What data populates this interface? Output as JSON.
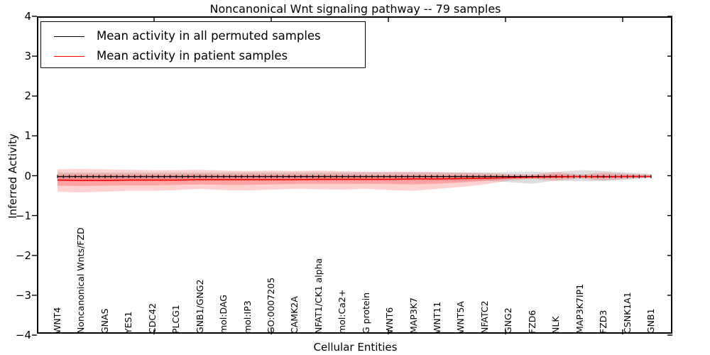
{
  "title": "Noncanonical Wnt signaling pathway -- 79 samples",
  "axes": {
    "ylabel": "Inferred Activity",
    "xlabel": "Cellular Entities",
    "yticks": [
      "4",
      "3",
      "2",
      "1",
      "0",
      "−1",
      "−2",
      "−3",
      "−4"
    ],
    "ytick_values": [
      4,
      3,
      2,
      1,
      0,
      -1,
      -2,
      -3,
      -4
    ]
  },
  "legend": {
    "items": [
      {
        "label": "Mean activity in all permuted samples",
        "color": "#000000"
      },
      {
        "label": "Mean activity in patient samples",
        "color": "#ff0000"
      }
    ]
  },
  "chart_data": {
    "type": "line",
    "title": "Noncanonical Wnt signaling pathway -- 79 samples",
    "xlabel": "Cellular Entities",
    "ylabel": "Inferred Activity",
    "ylim": [
      -4,
      4
    ],
    "grid": false,
    "legend_position": "upper left",
    "categories": [
      "WNT4",
      "Noncanonical Wnts/FZD",
      "GNAS",
      "YES1",
      "CDC42",
      "PLCG1",
      "GNB1/GNG2",
      "mol:DAG",
      "mol:IP3",
      "GO:0007205",
      "CAMK2A",
      "NFAT1/CK1 alpha",
      "mol:Ca2+",
      "G protein",
      "WNT6",
      "MAP3K7",
      "WNT11",
      "WNT5A",
      "NFATC2",
      "GNG2",
      "FZD6",
      "NLK",
      "MAP3K7IP1",
      "FZD3",
      "CSNK1A1",
      "GNB1"
    ],
    "series": [
      {
        "name": "Mean activity in all permuted samples",
        "color": "#000000",
        "values": [
          -0.02,
          -0.02,
          -0.02,
          -0.02,
          -0.02,
          -0.02,
          -0.02,
          -0.02,
          -0.02,
          -0.02,
          -0.02,
          -0.02,
          -0.02,
          -0.02,
          -0.02,
          -0.02,
          -0.02,
          -0.02,
          -0.02,
          -0.02,
          -0.02,
          -0.02,
          -0.02,
          -0.02,
          -0.02,
          -0.02
        ]
      },
      {
        "name": "Mean activity in patient samples",
        "color": "#ff0000",
        "values": [
          -0.11,
          -0.12,
          -0.12,
          -0.11,
          -0.11,
          -0.11,
          -0.1,
          -0.1,
          -0.1,
          -0.1,
          -0.1,
          -0.09,
          -0.09,
          -0.09,
          -0.09,
          -0.08,
          -0.08,
          -0.07,
          -0.06,
          -0.05,
          -0.04,
          -0.03,
          -0.02,
          -0.03,
          -0.02,
          -0.02
        ]
      }
    ],
    "bands": [
      {
        "name": "permuted-range",
        "color": "#888888",
        "opacity": 0.28,
        "upper": [
          0.08,
          0.08,
          0.08,
          0.08,
          0.08,
          0.08,
          0.08,
          0.08,
          0.08,
          0.08,
          0.08,
          0.08,
          0.08,
          0.08,
          0.08,
          0.08,
          0.08,
          0.08,
          0.08,
          0.09,
          0.1,
          0.09,
          0.14,
          0.12,
          0.08,
          0.05
        ],
        "lower": [
          -0.12,
          -0.12,
          -0.12,
          -0.12,
          -0.12,
          -0.12,
          -0.12,
          -0.12,
          -0.12,
          -0.12,
          -0.12,
          -0.12,
          -0.12,
          -0.12,
          -0.12,
          -0.12,
          -0.12,
          -0.12,
          -0.12,
          -0.16,
          -0.2,
          -0.12,
          -0.14,
          -0.13,
          -0.1,
          -0.05
        ]
      },
      {
        "name": "patient-range-outer",
        "color": "#ff0000",
        "opacity": 0.18,
        "upper": [
          0.16,
          0.17,
          0.16,
          0.15,
          0.14,
          0.14,
          0.15,
          0.13,
          0.12,
          0.13,
          0.12,
          0.13,
          0.11,
          0.1,
          0.1,
          0.1,
          0.09,
          0.08,
          0.07,
          0.04,
          0.03,
          0.09,
          0.03,
          0.08,
          0.05,
          0.02
        ],
        "lower": [
          -0.4,
          -0.42,
          -0.4,
          -0.38,
          -0.38,
          -0.36,
          -0.33,
          -0.36,
          -0.37,
          -0.35,
          -0.33,
          -0.34,
          -0.35,
          -0.33,
          -0.36,
          -0.38,
          -0.33,
          -0.28,
          -0.22,
          -0.12,
          -0.08,
          -0.13,
          -0.07,
          -0.12,
          -0.08,
          -0.04
        ]
      },
      {
        "name": "patient-range-inner",
        "color": "#ff0000",
        "opacity": 0.22,
        "upper": [
          0.02,
          0.02,
          0.02,
          0.02,
          0.02,
          0.02,
          0.03,
          0.02,
          0.02,
          0.02,
          0.02,
          0.02,
          0.02,
          0.01,
          0.01,
          0.01,
          0.01,
          0.01,
          0.01,
          0.0,
          0.0,
          0.03,
          0.0,
          0.02,
          0.01,
          0.0
        ],
        "lower": [
          -0.25,
          -0.26,
          -0.25,
          -0.24,
          -0.24,
          -0.23,
          -0.22,
          -0.23,
          -0.23,
          -0.22,
          -0.21,
          -0.21,
          -0.21,
          -0.2,
          -0.21,
          -0.22,
          -0.2,
          -0.17,
          -0.13,
          -0.08,
          -0.05,
          -0.06,
          -0.04,
          -0.05,
          -0.04,
          -0.02
        ]
      }
    ]
  }
}
